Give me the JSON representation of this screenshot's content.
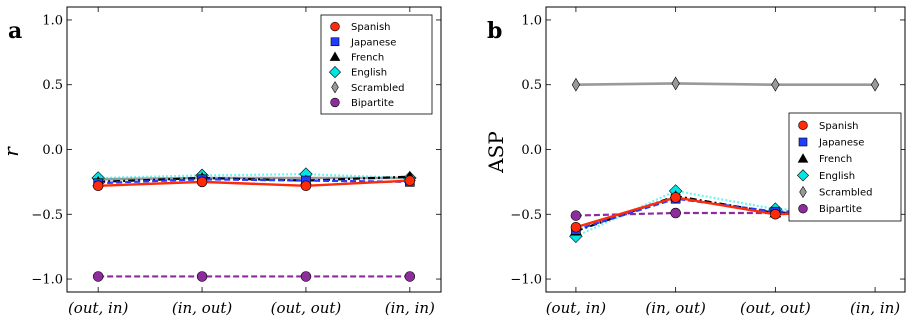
{
  "chart_data": [
    {
      "type": "line",
      "panel_label": "a",
      "ylabel": "r",
      "ylabel_italic": true,
      "categories": [
        "(out, in)",
        "(in, out)",
        "(out, out)",
        "(in, in)"
      ],
      "ylim": [
        -1.1,
        1.1
      ],
      "yticks": [
        -1.0,
        -0.5,
        0.0,
        0.5,
        1.0
      ],
      "ytick_labels": [
        "−1.0",
        "−0.5",
        "0.0",
        "0.5",
        "1.0"
      ],
      "grid": false,
      "legend_position": "top-right",
      "series": [
        {
          "name": "Spanish",
          "values": [
            -0.28,
            -0.25,
            -0.28,
            -0.24
          ],
          "color": "#ff2a0a",
          "marker": "circle",
          "linestyle": "solid"
        },
        {
          "name": "Japanese",
          "values": [
            -0.26,
            -0.23,
            -0.24,
            -0.25
          ],
          "color": "#1f3cff",
          "marker": "square",
          "linestyle": "dashed"
        },
        {
          "name": "French",
          "values": [
            -0.25,
            -0.22,
            -0.24,
            -0.21
          ],
          "color": "#000000",
          "marker": "triangle",
          "linestyle": "dashdot"
        },
        {
          "name": "English",
          "values": [
            -0.22,
            -0.2,
            -0.19,
            -0.22
          ],
          "color": "#00e5e5",
          "marker": "diamond",
          "linestyle": "dotted"
        },
        {
          "name": "Scrambled",
          "values": [
            -0.23,
            -0.22,
            -0.22,
            -0.22
          ],
          "color": "#999999",
          "marker": "thin-diamond",
          "linestyle": "solid"
        },
        {
          "name": "Bipartite",
          "values": [
            -0.98,
            -0.98,
            -0.98,
            -0.98
          ],
          "color": "#8e2c9e",
          "marker": "circle",
          "linestyle": "dashed"
        }
      ]
    },
    {
      "type": "line",
      "panel_label": "b",
      "ylabel": "ASP",
      "ylabel_italic": false,
      "categories": [
        "(out, in)",
        "(in, out)",
        "(out, out)",
        "(in, in)"
      ],
      "ylim": [
        -1.1,
        1.1
      ],
      "yticks": [
        -1.0,
        -0.5,
        0.0,
        0.5,
        1.0
      ],
      "ytick_labels": [
        "−1.0",
        "−0.5",
        "0.0",
        "0.5",
        "1.0"
      ],
      "grid": false,
      "legend_position": "center-right",
      "series": [
        {
          "name": "Spanish",
          "values": [
            -0.6,
            -0.37,
            -0.5,
            -0.47
          ],
          "color": "#ff2a0a",
          "marker": "circle",
          "linestyle": "solid"
        },
        {
          "name": "Japanese",
          "values": [
            -0.62,
            -0.38,
            -0.48,
            -0.47
          ],
          "color": "#1f3cff",
          "marker": "square",
          "linestyle": "dashed"
        },
        {
          "name": "French",
          "values": [
            -0.63,
            -0.36,
            -0.49,
            -0.47
          ],
          "color": "#000000",
          "marker": "triangle",
          "linestyle": "dashdot"
        },
        {
          "name": "English",
          "values": [
            -0.67,
            -0.32,
            -0.46,
            -0.48
          ],
          "color": "#00e5e5",
          "marker": "diamond",
          "linestyle": "dotted"
        },
        {
          "name": "Scrambled",
          "values": [
            0.5,
            0.51,
            0.5,
            0.5
          ],
          "color": "#999999",
          "marker": "thin-diamond",
          "linestyle": "solid"
        },
        {
          "name": "Bipartite",
          "values": [
            -0.51,
            -0.49,
            -0.49,
            -0.49
          ],
          "color": "#8e2c9e",
          "marker": "circle",
          "linestyle": "dashed"
        }
      ]
    }
  ]
}
